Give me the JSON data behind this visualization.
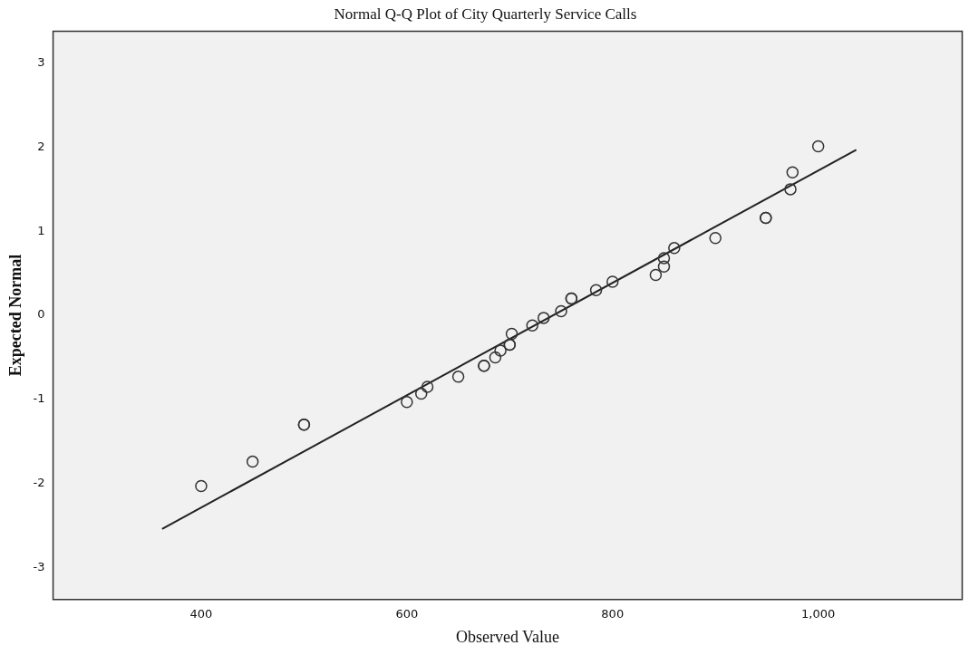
{
  "chart_data": {
    "type": "scatter",
    "title": "Normal Q-Q Plot of City Quarterly Service Calls",
    "xlabel": "Observed Value",
    "ylabel": "Expected Normal",
    "xlim": [
      256,
      1140
    ],
    "ylim": [
      -3.38,
      3.38
    ],
    "xticks": [
      400,
      600,
      800,
      {
        "value": 1000,
        "label": "1,000"
      }
    ],
    "yticks": [
      -3,
      -2,
      -1,
      0,
      1,
      2,
      3
    ],
    "grid": false,
    "legend": false,
    "series": [
      {
        "marker": "circle",
        "color": "#333333",
        "x": [
          400,
          450,
          500,
          500,
          600,
          614,
          620,
          650,
          675,
          675,
          686,
          691,
          700,
          700,
          702,
          722,
          733,
          750,
          760,
          760,
          784,
          800,
          842,
          850,
          850,
          860,
          900,
          949,
          949,
          973,
          975,
          1000
        ],
        "values": [
          -2.03,
          -1.74,
          -1.3,
          -1.3,
          -1.03,
          -0.93,
          -0.85,
          -0.73,
          -0.6,
          -0.6,
          -0.5,
          -0.42,
          -0.35,
          -0.35,
          -0.22,
          -0.12,
          -0.03,
          0.05,
          0.2,
          0.2,
          0.3,
          0.4,
          0.48,
          0.58,
          0.68,
          0.8,
          0.92,
          1.16,
          1.16,
          1.5,
          1.7,
          2.01
        ]
      },
      {
        "type": "line",
        "marker": "none",
        "line_style": "solid",
        "color": "#222222",
        "x": [
          362,
          1037
        ],
        "values": [
          -2.54,
          1.97
        ]
      }
    ]
  }
}
